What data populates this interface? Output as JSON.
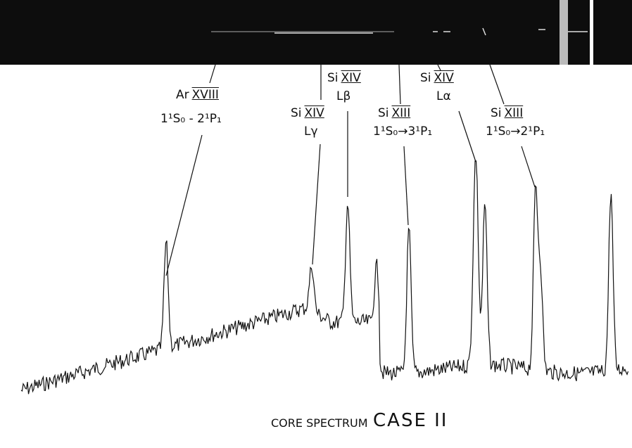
{
  "labels": [
    {
      "element": "Ar",
      "stage": "XVIII",
      "line": "1¹S₀ - 2¹P₁"
    },
    {
      "element": "Si",
      "stage": "XIV",
      "line": "Lγ"
    },
    {
      "element": "Si",
      "stage": "XIV",
      "line": "Lβ"
    },
    {
      "element": "Si",
      "stage": "XIII",
      "line": "1¹S₀→3¹P₁"
    },
    {
      "element": "Si",
      "stage": "XIV",
      "line": "Lα"
    },
    {
      "element": "Si",
      "stage": "XIII",
      "line": "1¹S₀→2¹P₁"
    }
  ],
  "caption": {
    "small": "CORE SPECTRUM",
    "large": "CASE II"
  }
}
